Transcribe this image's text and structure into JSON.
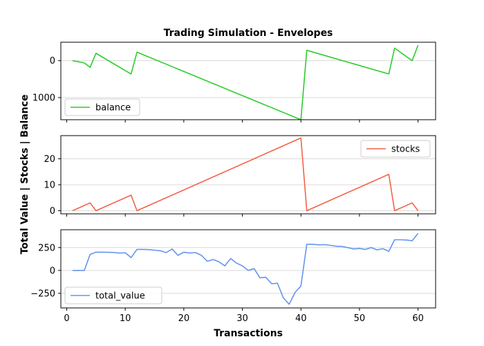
{
  "chart_data": {
    "type": "line",
    "title": "Trading Simulation - Envelopes",
    "xlabel": "Transactions",
    "ylabel": "Total Value | Stocks | Balance",
    "xlim": [
      -1,
      63
    ],
    "x_ticks": [
      "0",
      "10",
      "20",
      "30",
      "40",
      "50",
      "60"
    ],
    "grid": "horizontal",
    "panels": [
      {
        "series_name": "balance",
        "color": "#2ecc2e",
        "ylim": [
          1600,
          -500
        ],
        "y_inverted": true,
        "y_ticks": [
          0,
          1000
        ],
        "y_tick_labels": [
          "0",
          "1000"
        ],
        "legend_position": "lower-left",
        "x": [
          1,
          3,
          4,
          5,
          11,
          12,
          40,
          41,
          55,
          56,
          59,
          60
        ],
        "values": [
          0,
          60,
          180,
          -200,
          360,
          -230,
          1600,
          -280,
          360,
          -340,
          0,
          -420
        ]
      },
      {
        "series_name": "stocks",
        "color": "#f4624a",
        "ylim": [
          -1.2,
          28.9
        ],
        "y_ticks": [
          0,
          10,
          20
        ],
        "y_tick_labels": [
          "0",
          "10",
          "20"
        ],
        "legend_position": "upper-right",
        "x": [
          1,
          4,
          5,
          11,
          12,
          40,
          41,
          55,
          56,
          59,
          60
        ],
        "values": [
          0,
          3,
          0,
          6,
          0,
          28,
          0,
          14,
          0,
          3,
          0
        ]
      },
      {
        "series_name": "total_value",
        "color": "#6495ed",
        "ylim": [
          -410,
          445
        ],
        "y_ticks": [
          -250,
          0,
          250
        ],
        "y_tick_labels": [
          "−250",
          "0",
          "250"
        ],
        "legend_position": "lower-left",
        "x": [
          1,
          2,
          3,
          4,
          5,
          6,
          7,
          8,
          9,
          10,
          11,
          12,
          13,
          14,
          15,
          16,
          17,
          18,
          19,
          20,
          21,
          22,
          23,
          24,
          25,
          26,
          27,
          28,
          29,
          30,
          31,
          32,
          33,
          34,
          35,
          36,
          37,
          38,
          39,
          40,
          41,
          42,
          43,
          44,
          45,
          46,
          47,
          48,
          49,
          50,
          51,
          52,
          53,
          54,
          55,
          56,
          57,
          58,
          59,
          60
        ],
        "values": [
          0,
          0,
          0,
          175,
          200,
          200,
          198,
          197,
          190,
          193,
          140,
          230,
          230,
          228,
          222,
          215,
          195,
          235,
          165,
          200,
          190,
          195,
          165,
          100,
          120,
          95,
          50,
          130,
          80,
          50,
          0,
          20,
          -80,
          -75,
          -145,
          -140,
          -300,
          -370,
          -240,
          -170,
          285,
          285,
          280,
          282,
          275,
          265,
          262,
          250,
          235,
          240,
          230,
          250,
          225,
          238,
          210,
          335,
          335,
          333,
          325,
          405
        ]
      }
    ]
  }
}
